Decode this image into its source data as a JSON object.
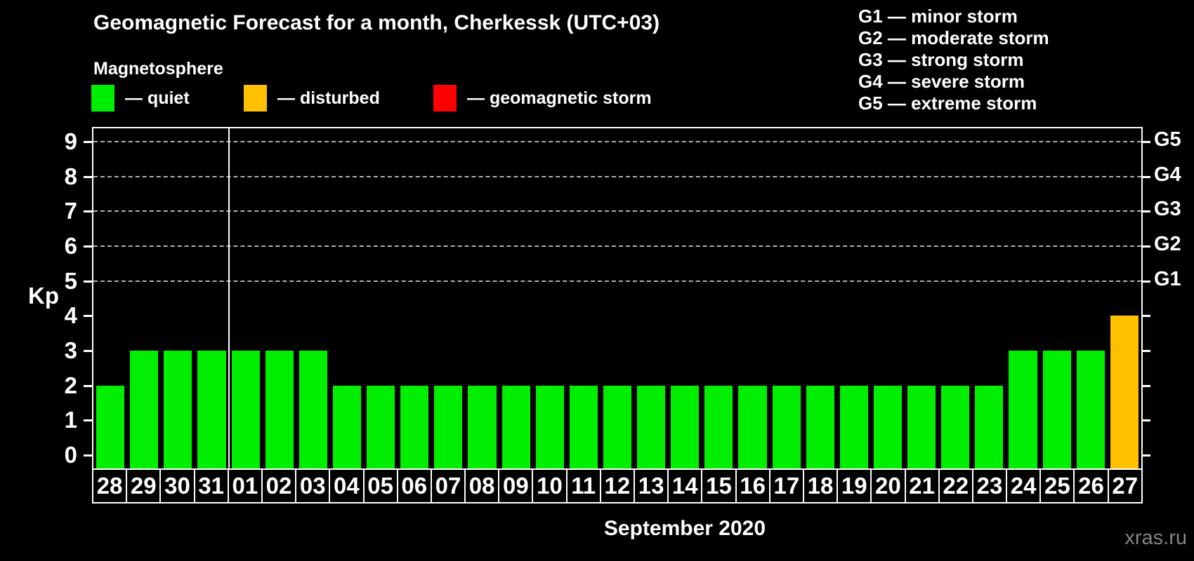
{
  "header": {
    "title": "Geomagnetic Forecast for a month, Cherkessk (UTC+03)",
    "subtitle": "Magnetosphere"
  },
  "legend": {
    "items": [
      {
        "name": "quiet",
        "label": "— quiet",
        "color": "#00ee00"
      },
      {
        "name": "disturbed",
        "label": "— disturbed",
        "color": "#ffc000"
      },
      {
        "name": "geomagnetic-storm",
        "label": "— geomagnetic storm",
        "color": "#ff0000"
      }
    ]
  },
  "storm_scale_legend": {
    "lines": [
      "G1 — minor storm",
      "G2 — moderate storm",
      "G3 — strong storm",
      "G4 — severe storm",
      "G5 — extreme storm"
    ]
  },
  "chart_data": {
    "type": "bar",
    "title": "Geomagnetic Forecast for a month, Cherkessk (UTC+03)",
    "ylabel": "Kp",
    "xlabel": "September 2020",
    "ylim": [
      0,
      9
    ],
    "yticks": [
      0,
      1,
      2,
      3,
      4,
      5,
      6,
      7,
      8,
      9
    ],
    "gridlines_at_kp": [
      5,
      6,
      7,
      8,
      9
    ],
    "grid": "dashed horizontal at storm levels only",
    "legend_position": "top",
    "right_axis_labels": [
      {
        "label": "G5",
        "kp": 9
      },
      {
        "label": "G4",
        "kp": 8
      },
      {
        "label": "G3",
        "kp": 7
      },
      {
        "label": "G2",
        "kp": 6
      },
      {
        "label": "G1",
        "kp": 5
      }
    ],
    "month_separator_after_index": 3,
    "categories": [
      "28",
      "29",
      "30",
      "31",
      "01",
      "02",
      "03",
      "04",
      "05",
      "06",
      "07",
      "08",
      "09",
      "10",
      "11",
      "12",
      "13",
      "14",
      "15",
      "16",
      "17",
      "18",
      "19",
      "20",
      "21",
      "22",
      "23",
      "24",
      "25",
      "26",
      "27"
    ],
    "values": [
      2,
      3,
      3,
      3,
      3,
      3,
      3,
      2,
      2,
      2,
      2,
      2,
      2,
      2,
      2,
      2,
      2,
      2,
      2,
      2,
      2,
      2,
      2,
      2,
      2,
      2,
      2,
      3,
      3,
      3,
      4
    ],
    "statuses": [
      "quiet",
      "quiet",
      "quiet",
      "quiet",
      "quiet",
      "quiet",
      "quiet",
      "quiet",
      "quiet",
      "quiet",
      "quiet",
      "quiet",
      "quiet",
      "quiet",
      "quiet",
      "quiet",
      "quiet",
      "quiet",
      "quiet",
      "quiet",
      "quiet",
      "quiet",
      "quiet",
      "quiet",
      "quiet",
      "quiet",
      "quiet",
      "quiet",
      "quiet",
      "quiet",
      "disturbed"
    ],
    "status_colors": {
      "quiet": "#00ee00",
      "disturbed": "#ffc000",
      "storm": "#ff0000"
    }
  },
  "footer": {
    "month_label": "September 2020",
    "watermark": "xras.ru"
  }
}
